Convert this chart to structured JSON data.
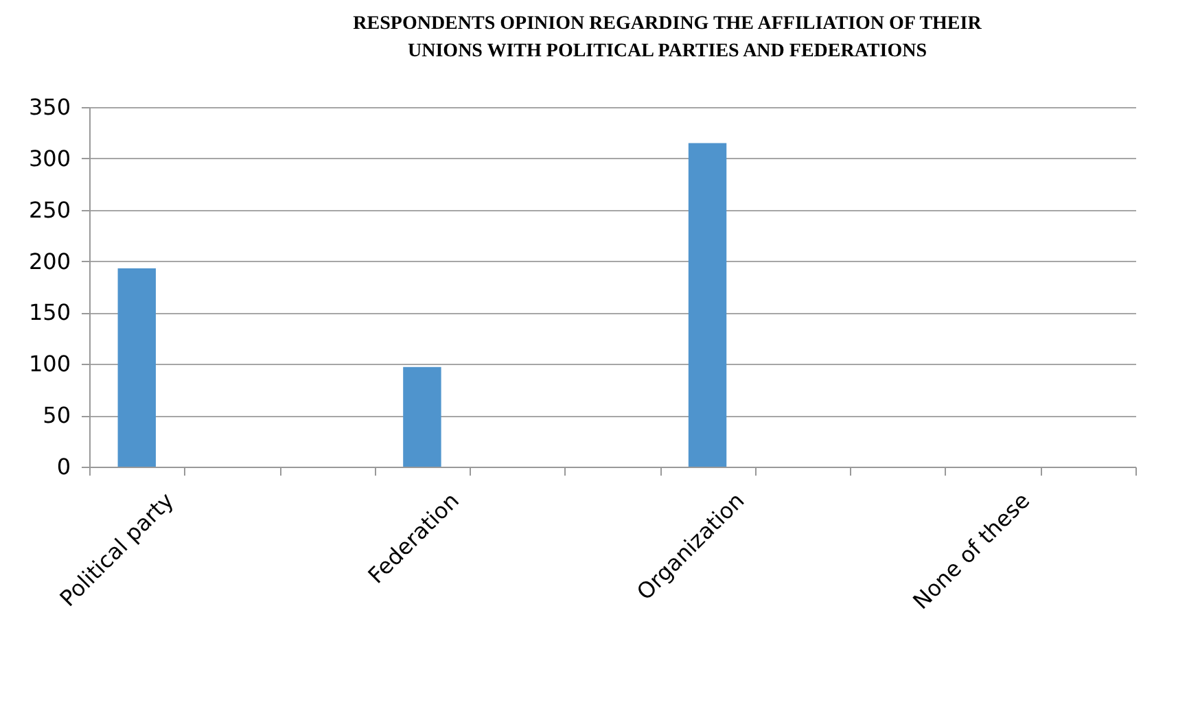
{
  "chart_data": {
    "type": "bar",
    "title": [
      "RESPONDENTS OPINION  REGARDING THE AFFILIATION OF THEIR",
      "UNIONS WITH POLITICAL PARTIES AND FEDERATIONS"
    ],
    "categories": [
      "Political party",
      null,
      null,
      "Federation",
      null,
      null,
      "Organization",
      null,
      null,
      "None of these",
      null
    ],
    "values": [
      193,
      null,
      null,
      97,
      null,
      null,
      315,
      null,
      null,
      0,
      null
    ],
    "color": "#4f94cd",
    "ylim": [
      0,
      350
    ],
    "yticks": [
      0,
      50,
      100,
      150,
      200,
      250,
      300,
      350
    ],
    "grid": "y",
    "legend": false
  }
}
